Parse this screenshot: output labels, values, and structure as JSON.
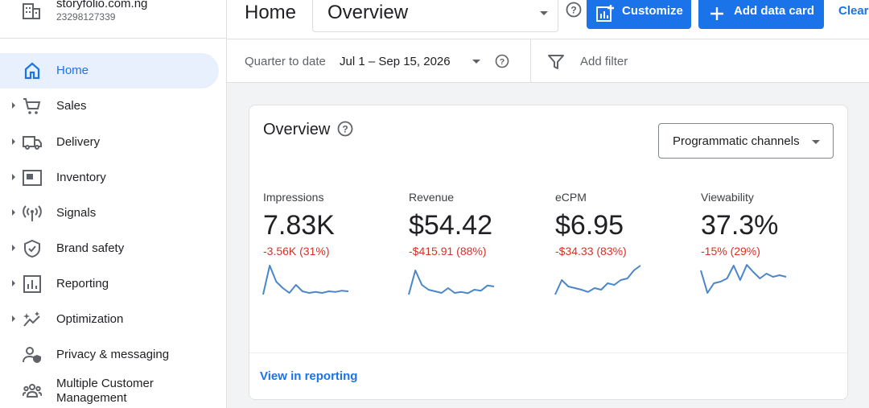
{
  "account": {
    "name": "storyfolio.com.ng",
    "id": "23298127339"
  },
  "sidebar": {
    "items": [
      {
        "label": "Home",
        "icon": "home-icon",
        "active": true
      },
      {
        "label": "Sales",
        "icon": "cart-icon"
      },
      {
        "label": "Delivery",
        "icon": "truck-icon"
      },
      {
        "label": "Inventory",
        "icon": "inventory-icon"
      },
      {
        "label": "Signals",
        "icon": "antenna-icon"
      },
      {
        "label": "Brand safety",
        "icon": "shield-icon"
      },
      {
        "label": "Reporting",
        "icon": "chart-icon"
      },
      {
        "label": "Optimization",
        "icon": "sparkle-icon"
      },
      {
        "label": "Privacy & messaging",
        "icon": "person-shield-icon"
      },
      {
        "label": "Multiple Customer Management",
        "icon": "people-icon"
      }
    ]
  },
  "header": {
    "title": "Home",
    "dashboard": "Overview",
    "customize_label": "Customize",
    "add_card_label": "Add data card",
    "clear_label": "Clear"
  },
  "filter": {
    "date_label": "Quarter to date",
    "date_value": "Jul 1 – Sep 15, 2026",
    "add_filter_label": "Add filter"
  },
  "card": {
    "title": "Overview",
    "channel": "Programmatic channels",
    "view_link": "View in reporting",
    "metrics": [
      {
        "name": "Impressions",
        "value": "7.83K",
        "delta": "-3.56K (31%)",
        "spark": [
          0,
          90,
          40,
          20,
          5,
          30,
          10,
          5,
          8,
          5,
          10,
          8,
          12,
          10
        ]
      },
      {
        "name": "Revenue",
        "value": "$54.42",
        "delta": "-$415.91 (88%)",
        "spark": [
          0,
          75,
          30,
          15,
          10,
          5,
          20,
          5,
          8,
          4,
          15,
          12,
          28,
          25
        ]
      },
      {
        "name": "eCPM",
        "value": "$6.95",
        "delta": "-$34.33 (83%)",
        "spark": [
          0,
          45,
          25,
          20,
          15,
          8,
          20,
          15,
          35,
          30,
          45,
          50,
          75,
          90
        ]
      },
      {
        "name": "Viewability",
        "value": "37.3%",
        "delta": "-15% (29%)",
        "spark": [
          75,
          5,
          35,
          40,
          50,
          90,
          45,
          92,
          70,
          50,
          65,
          55,
          60,
          55
        ]
      }
    ]
  },
  "colors": {
    "accent": "#1a73e8",
    "negative": "#d93025",
    "spark": "#4a86c8"
  }
}
